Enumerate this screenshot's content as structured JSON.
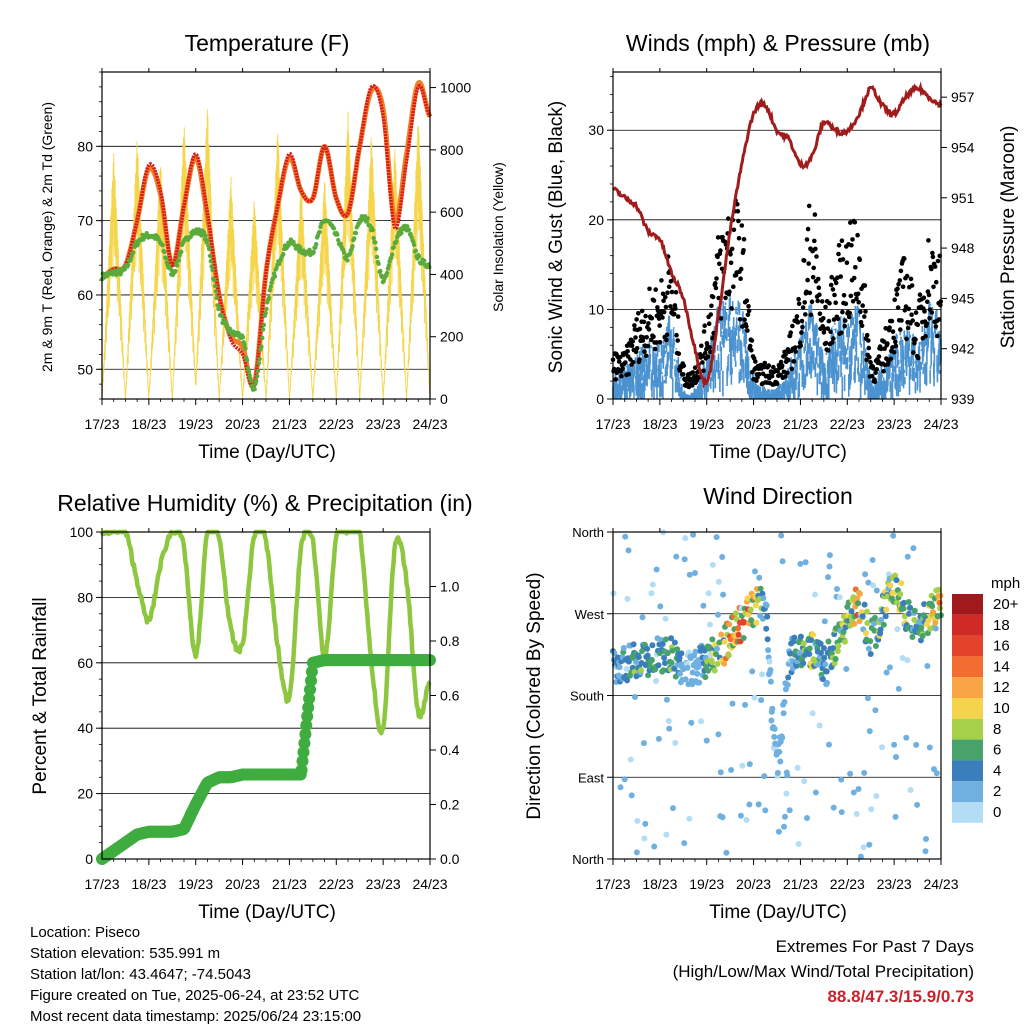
{
  "x_ticks": [
    "17/23",
    "18/23",
    "19/23",
    "20/23",
    "21/23",
    "22/23",
    "23/23",
    "24/23"
  ],
  "x_label": "Time (Day/UTC)",
  "info": {
    "location": "Location: Piseco",
    "elevation": "Station elevation: 535.991 m",
    "latlon": "Station lat/lon: 43.4647; -74.5043",
    "created": "Figure created on Tue, 2025-06-24, at 23:52 UTC",
    "timestamp": "Most recent data timestamp: 2025/06/24 23:15:00"
  },
  "extremes": {
    "title": "Extremes For Past 7 Days",
    "subtitle": "(High/Low/Max Wind/Total Precipitation)",
    "values": "88.8/47.3/15.9/0.73"
  },
  "colors": {
    "temp2m": "#d7191c",
    "temp9m": "#f07d28",
    "dewpoint": "#5aab3c",
    "solar": "#f5d54a",
    "gust": "#000000",
    "wind": "#4b92d0",
    "pressure": "#a01c1c",
    "rh": "#8dc63f",
    "precip": "#3fac3f"
  },
  "chart_data": [
    {
      "type": "line",
      "title": "Temperature (F)",
      "xlabel": "Time (Day/UTC)",
      "ylabel": "2m & 9m T (Red, Orange) & 2m Td (Green)",
      "ylabel_right": "Solar Insolation (Yellow)",
      "xlim": [
        0,
        7
      ],
      "ylim": [
        46,
        90
      ],
      "yticks": [
        50,
        60,
        70,
        80
      ],
      "ylim_right": [
        0,
        1050
      ],
      "yticks_right": [
        0,
        200,
        400,
        600,
        800,
        1000
      ],
      "grid": "horizontal",
      "x": [
        0,
        0.25,
        0.5,
        0.75,
        1,
        1.25,
        1.5,
        1.75,
        2,
        2.25,
        2.5,
        2.75,
        3,
        3.25,
        3.5,
        3.75,
        4,
        4.25,
        4.5,
        4.75,
        5,
        5.25,
        5.5,
        5.75,
        6,
        6.25,
        6.5,
        6.75,
        7
      ],
      "series": [
        {
          "values": [
            62.5,
            63.5,
            64,
            70,
            77.5,
            74,
            64,
            72,
            79,
            71,
            60,
            54,
            52,
            48,
            63,
            72,
            79,
            74,
            73,
            80,
            73,
            71,
            80,
            88,
            84,
            69,
            78,
            88,
            84
          ]
        },
        {
          "values": [
            62.5,
            63.5,
            64,
            70,
            77,
            73.5,
            64,
            72,
            78.5,
            70.5,
            60,
            54.5,
            53,
            48,
            63,
            72,
            78.5,
            74,
            73,
            80,
            73,
            71,
            80,
            87.5,
            85,
            70,
            79,
            88.5,
            84
          ]
        },
        {
          "values": [
            62.5,
            63,
            63.5,
            67,
            68,
            67,
            63,
            67,
            68.5,
            67,
            58,
            55,
            54,
            47.5,
            58,
            64,
            67,
            66,
            66,
            70,
            68,
            65,
            70,
            69,
            62,
            67,
            69,
            65,
            64
          ]
        },
        {
          "values": [
            0,
            800,
            0,
            850,
            0,
            780,
            0,
            900,
            50,
            950,
            0,
            720,
            0,
            650,
            0,
            880,
            0,
            700,
            0,
            720,
            0,
            930,
            0,
            860,
            0,
            820,
            0,
            920,
            0
          ]
        }
      ]
    },
    {
      "type": "scatter",
      "title": "Winds (mph) & Pressure (mb)",
      "xlabel": "Time (Day/UTC)",
      "ylabel": "Sonic Wind & Gust (Blue, Black)",
      "ylabel_right": "Station Pressure (Maroon)",
      "xlim": [
        0,
        7
      ],
      "ylim": [
        0,
        36.5
      ],
      "yticks": [
        0,
        10,
        20,
        30
      ],
      "ylim_right": [
        939,
        958.5
      ],
      "yticks_right": [
        939,
        942,
        945,
        948,
        951,
        954,
        957
      ],
      "grid": "horizontal",
      "x": [
        0,
        0.25,
        0.5,
        0.75,
        1,
        1.25,
        1.5,
        1.75,
        2,
        2.25,
        2.5,
        2.75,
        3,
        3.25,
        3.5,
        3.75,
        4,
        4.25,
        4.5,
        4.75,
        5,
        5.25,
        5.5,
        5.75,
        6,
        6.25,
        6.5,
        6.75,
        7
      ],
      "series": [
        {
          "values": [
            4,
            4,
            7,
            9,
            10,
            12,
            3,
            3,
            7,
            14,
            17,
            15,
            4,
            3,
            3,
            5,
            10,
            17,
            8,
            12,
            14,
            15,
            4,
            5,
            9,
            12,
            8,
            14,
            12
          ]
        },
        {
          "values": [
            2,
            3,
            4,
            5,
            5,
            7,
            1,
            1,
            4,
            8,
            9,
            8,
            2,
            1,
            1,
            3,
            6,
            8,
            4,
            7,
            7,
            8,
            2,
            3,
            5,
            7,
            5,
            8,
            7
          ]
        },
        {
          "values": [
            951.5,
            951,
            950.5,
            949,
            948.5,
            946.5,
            945,
            942,
            940,
            944,
            949,
            953,
            956,
            956.5,
            955,
            954.5,
            953,
            953.5,
            955.5,
            955,
            955,
            956,
            957.5,
            956.5,
            956,
            957,
            957.5,
            957,
            956.5
          ]
        }
      ]
    },
    {
      "type": "line",
      "title": "Relative Humidity (%) & Precipitation (in)",
      "xlabel": "Time (Day/UTC)",
      "ylabel": "Percent & Total Rainfall",
      "xlim": [
        0,
        7
      ],
      "ylim": [
        0,
        100
      ],
      "yticks": [
        0,
        20,
        40,
        60,
        80,
        100
      ],
      "ylim_right": [
        0,
        1.2
      ],
      "yticks_right": [
        0.0,
        0.2,
        0.4,
        0.6,
        0.8,
        1.0
      ],
      "grid": "horizontal",
      "x": [
        0,
        0.25,
        0.5,
        0.75,
        1,
        1.25,
        1.5,
        1.75,
        2,
        2.25,
        2.5,
        2.75,
        3,
        3.25,
        3.5,
        3.75,
        4,
        4.25,
        4.5,
        4.75,
        5,
        5.25,
        5.5,
        5.75,
        6,
        6.25,
        6.5,
        6.75,
        7
      ],
      "series": [
        {
          "values": [
            100,
            100,
            100,
            85,
            73,
            90,
            100,
            95,
            62,
            100,
            98,
            70,
            66,
            99,
            97,
            65,
            50,
            95,
            97,
            62,
            98,
            100,
            100,
            60,
            40,
            95,
            85,
            45,
            55
          ]
        },
        {
          "values": [
            0,
            0.03,
            0.06,
            0.09,
            0.1,
            0.1,
            0.1,
            0.11,
            0.2,
            0.28,
            0.3,
            0.3,
            0.31,
            0.31,
            0.31,
            0.31,
            0.31,
            0.31,
            0.72,
            0.73,
            0.73,
            0.73,
            0.73,
            0.73,
            0.73,
            0.73,
            0.73,
            0.73,
            0.73
          ]
        }
      ]
    },
    {
      "type": "scatter",
      "title": "Wind Direction",
      "xlabel": "Time (Day/UTC)",
      "ylabel": "Direction (Colored By Speed)",
      "xlim": [
        0,
        7
      ],
      "ylim": [
        0,
        360
      ],
      "yticks": [
        "North",
        "East",
        "South",
        "West",
        "North"
      ],
      "grid": "horizontal",
      "legend": "right",
      "legend_title": "mph",
      "legend_labels": [
        "20+",
        "18",
        "16",
        "14",
        "12",
        "10",
        "8",
        "6",
        "4",
        "2",
        "0"
      ],
      "legend_colors": [
        "#a01a1d",
        "#cf2a25",
        "#e2432a",
        "#f26d2f",
        "#f8a546",
        "#f4d44c",
        "#a6cf4a",
        "#47a369",
        "#3a7fbb",
        "#6fb0e0",
        "#b3dcf5"
      ],
      "x": [
        0,
        0.25,
        0.5,
        0.75,
        1,
        1.25,
        1.5,
        1.75,
        2,
        2.25,
        2.5,
        2.75,
        3,
        3.25,
        3.5,
        3.75,
        4,
        4.25,
        4.5,
        4.75,
        5,
        5.25,
        5.5,
        5.75,
        6,
        6.25,
        6.5,
        6.75,
        7
      ],
      "series": [
        {
          "values": [
            215,
            215,
            220,
            215,
            222,
            225,
            210,
            210,
            220,
            225,
            245,
            260,
            275,
            270,
            110,
            215,
            225,
            230,
            215,
            235,
            260,
            280,
            245,
            270,
            300,
            270,
            255,
            270,
            280
          ]
        },
        {
          "values": [
            4,
            4,
            6,
            5,
            6,
            7,
            2,
            2,
            6,
            9,
            12,
            14,
            12,
            4,
            2,
            3,
            6,
            8,
            4,
            7,
            10,
            12,
            5,
            8,
            9,
            8,
            6,
            10,
            11
          ]
        }
      ]
    }
  ]
}
